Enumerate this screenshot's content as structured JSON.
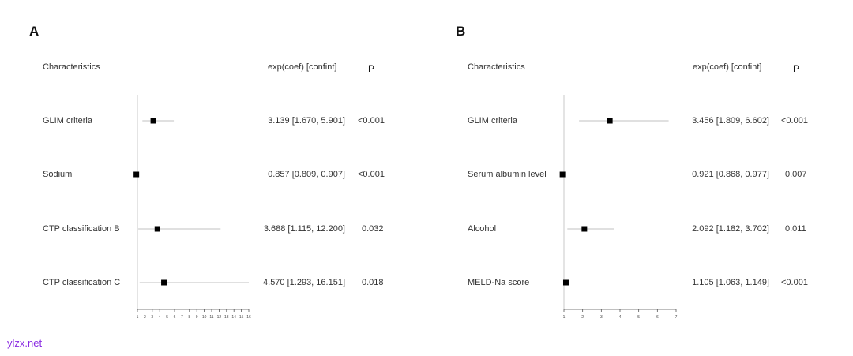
{
  "chart_data": [
    {
      "type": "forest",
      "panel_label": "A",
      "headers": {
        "label": "Characteristics",
        "estimate": "exp(coef) [confint]",
        "p": "P"
      },
      "xlim": [
        1,
        16
      ],
      "ticks": [
        1,
        2,
        3,
        4,
        5,
        6,
        7,
        8,
        9,
        10,
        11,
        12,
        13,
        14,
        15,
        16
      ],
      "reference_line": 1,
      "rows": [
        {
          "label": "GLIM criteria",
          "estimate": 3.139,
          "lower": 1.67,
          "upper": 5.901,
          "ci_text": "3.139 [1.670, 5.901]",
          "p": "<0.001"
        },
        {
          "label": "Sodium",
          "estimate": 0.857,
          "lower": 0.809,
          "upper": 0.907,
          "ci_text": "0.857 [0.809, 0.907]",
          "p": "<0.001"
        },
        {
          "label": "CTP classification B",
          "estimate": 3.688,
          "lower": 1.115,
          "upper": 12.2,
          "ci_text": "3.688 [1.115, 12.200]",
          "p": "0.032"
        },
        {
          "label": "CTP classification C",
          "estimate": 4.57,
          "lower": 1.293,
          "upper": 16.151,
          "ci_text": "4.570 [1.293, 16.151]",
          "p": "0.018"
        }
      ]
    },
    {
      "type": "forest",
      "panel_label": "B",
      "headers": {
        "label": "Characteristics",
        "estimate": "exp(coef) [confint]",
        "p": "P"
      },
      "xlim": [
        1,
        7
      ],
      "ticks": [
        1,
        2,
        3,
        4,
        5,
        6,
        7
      ],
      "reference_line": 1,
      "rows": [
        {
          "label": "GLIM criteria",
          "estimate": 3.456,
          "lower": 1.809,
          "upper": 6.602,
          "ci_text": "3.456 [1.809, 6.602]",
          "p": "<0.001"
        },
        {
          "label": "Serum albumin level",
          "estimate": 0.921,
          "lower": 0.868,
          "upper": 0.977,
          "ci_text": "0.921 [0.868, 0.977]",
          "p": "0.007"
        },
        {
          "label": "Alcohol",
          "estimate": 2.092,
          "lower": 1.182,
          "upper": 3.702,
          "ci_text": "2.092 [1.182, 3.702]",
          "p": "0.011"
        },
        {
          "label": "MELD-Na score",
          "estimate": 1.105,
          "lower": 1.063,
          "upper": 1.149,
          "ci_text": "1.105 [1.063, 1.149]",
          "p": "<0.001"
        }
      ]
    }
  ],
  "watermark": "ylzx.net"
}
